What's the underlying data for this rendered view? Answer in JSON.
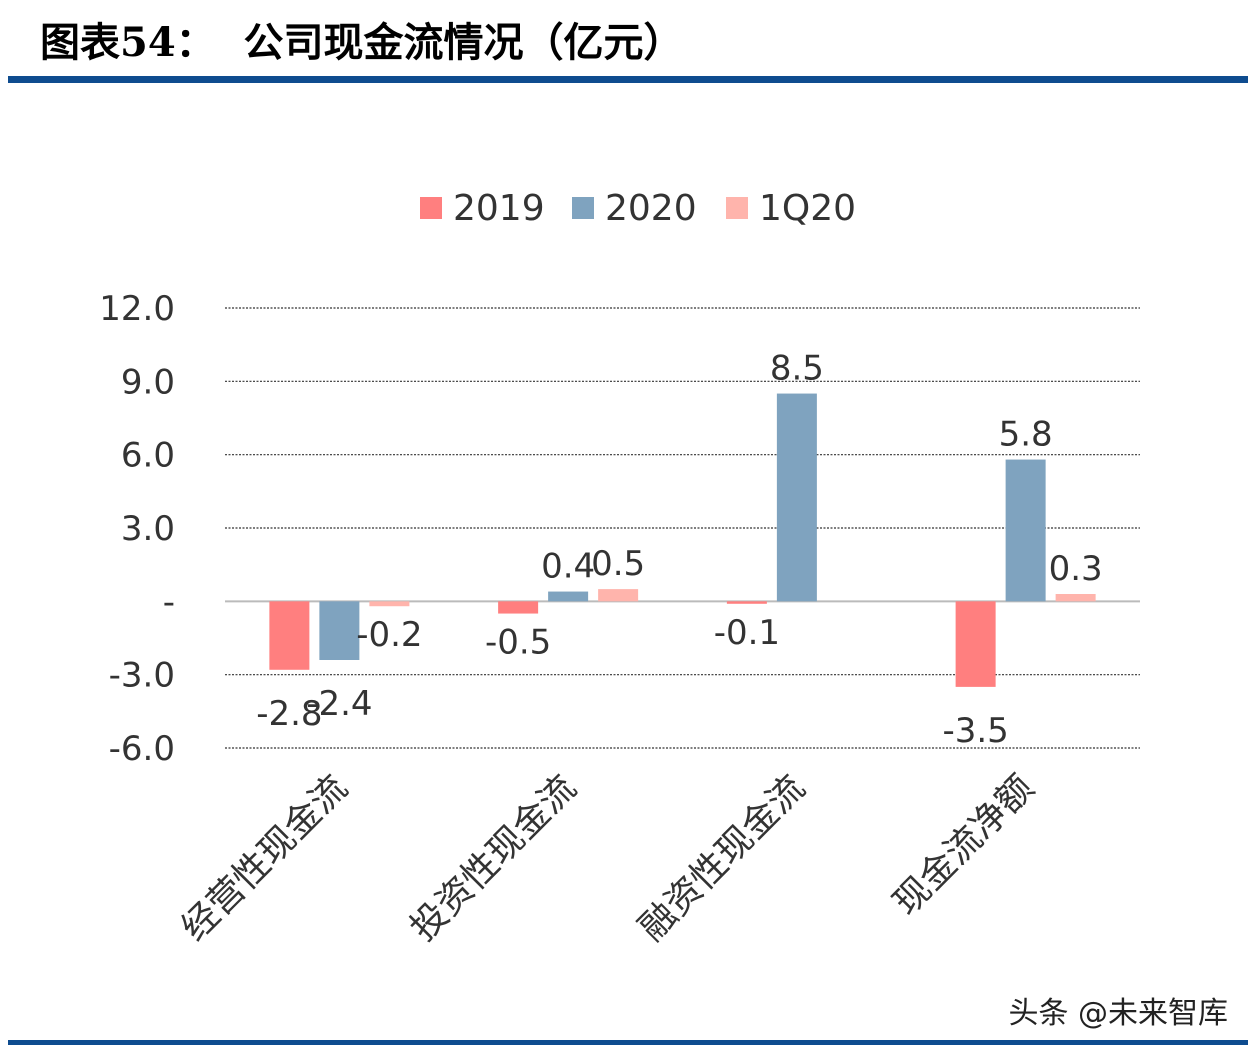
{
  "title": "图表54：  公司现金流情况（亿元）",
  "watermark": "头条 @未来智库",
  "chart_data": {
    "type": "bar",
    "categories": [
      "经营性现金流",
      "投资性现金流",
      "融资性现金流",
      "现金流净额"
    ],
    "series": [
      {
        "name": "2019",
        "color": "#FF7F7F",
        "values": [
          -2.8,
          -0.5,
          -0.1,
          -3.5
        ]
      },
      {
        "name": "2020",
        "color": "#7FA3BF",
        "values": [
          -2.4,
          0.4,
          8.5,
          5.8
        ]
      },
      {
        "name": "1Q20",
        "color": "#FFB4AC",
        "values": [
          -0.2,
          0.5,
          null,
          0.3
        ]
      }
    ],
    "ylim": [
      -6,
      12
    ],
    "yticks": [
      12,
      9,
      6,
      3,
      0,
      -3,
      -6
    ],
    "ytick_labels": [
      "12.0",
      "9.0",
      "6.0",
      "3.0",
      "-",
      "-3.0",
      "-6.0"
    ],
    "grid": true,
    "legend": "top-center"
  }
}
